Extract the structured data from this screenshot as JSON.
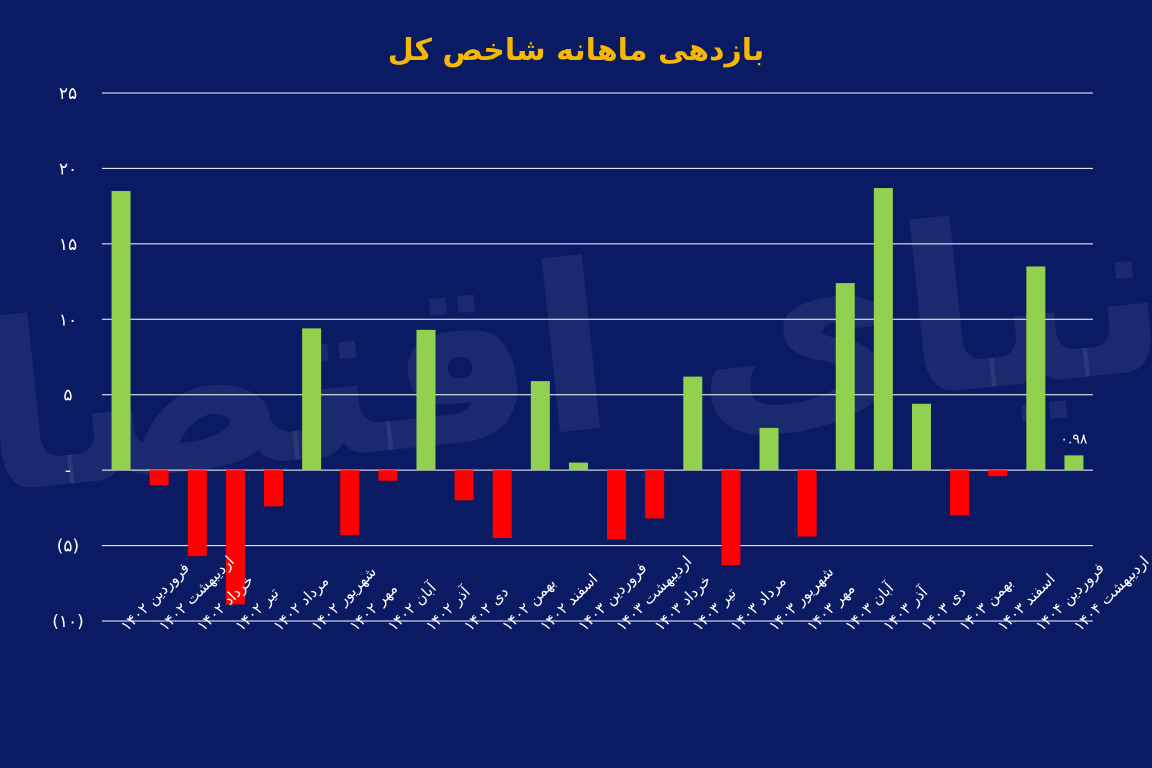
{
  "watermark": "دنیای اقتصاد",
  "colors": {
    "background": "#0a1a63",
    "title": "#f5b800",
    "positive": "#92d050",
    "negative": "#ff0000",
    "grid": "#ffffff",
    "text": "#ffffff"
  },
  "chart_data": {
    "type": "bar",
    "title": "بازدهی ماهانه شاخص کل",
    "xlabel": "",
    "ylabel": "",
    "ylim": [
      -10,
      25
    ],
    "yticks": [
      25,
      20,
      15,
      10,
      5,
      0,
      -5,
      -10
    ],
    "ytick_labels": [
      "۲۵",
      "۲۰",
      "۱۵",
      "۱۰",
      "۵",
      "-",
      "(۵)",
      "(۱۰)"
    ],
    "grid": true,
    "legend": "none",
    "categories": [
      "فروردین ۱۴۰۲",
      "اردیبهشت ۱۴۰۲",
      "خرداد ۱۴۰۲",
      "تیر ۱۴۰۲",
      "مرداد ۱۴۰۲",
      "شهریور ۱۴۰۲",
      "مهر ۱۴۰۲",
      "آبان ۱۴۰۲",
      "آذر ۱۴۰۲",
      "دی ۱۴۰۲",
      "بهمن ۱۴۰۲",
      "اسفند ۱۴۰۲",
      "فروردین ۱۴۰۳",
      "اردیبهشت ۱۴۰۳",
      "خرداد ۱۴۰۳",
      "تیر ۱۴۰۳",
      "مرداد ۱۴۰۳",
      "شهریور ۱۴۰۳",
      "مهر ۱۴۰۳",
      "آبان ۱۴۰۳",
      "آذر ۱۴۰۳",
      "دی ۱۴۰۳",
      "بهمن ۱۴۰۳",
      "اسفند ۱۴۰۳",
      "فروردین ۱۴۰۴",
      "اردیبهشت ۱۴۰۴"
    ],
    "values": [
      18.5,
      -1.0,
      -5.7,
      -8.9,
      -2.4,
      9.4,
      -4.3,
      -0.7,
      9.3,
      -2.0,
      -4.5,
      5.9,
      0.5,
      -4.6,
      -3.2,
      6.2,
      -6.3,
      2.8,
      -4.4,
      12.4,
      18.7,
      4.4,
      -3.0,
      -0.4,
      13.5,
      0.98
    ],
    "data_labels": [
      {
        "index": 25,
        "text": "۰.۹۸"
      }
    ]
  }
}
